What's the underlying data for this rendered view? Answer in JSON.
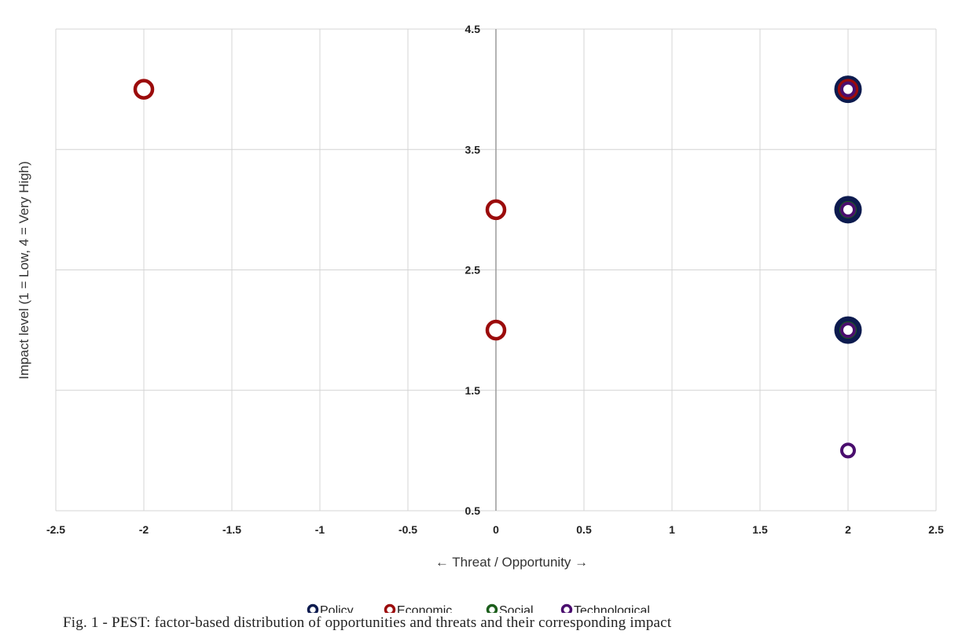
{
  "caption": "Fig. 1 - PEST: factor-based distribution of opportunities and threats and their corresponding impact",
  "chart_data": {
    "type": "scatter",
    "title": "",
    "xlabel": "← Threat / Opportunity →",
    "ylabel": "Impact level (1 = Low, 4 = Very High)",
    "xlim": [
      -2.5,
      2.5
    ],
    "ylim": [
      0.5,
      4.5
    ],
    "xticks": [
      -2.5,
      -2,
      -1.5,
      -1,
      -0.5,
      0,
      0.5,
      1,
      1.5,
      2,
      2.5
    ],
    "xtick_labels": [
      "-2.5",
      "-2",
      "-1.5",
      "-1",
      "-0.5",
      "0",
      "0.5",
      "1",
      "1.5",
      "2",
      "2.5"
    ],
    "yticks": [
      4.5,
      3.5,
      2.5,
      1.5,
      0.5
    ],
    "ytick_labels": [
      "4.5",
      "3.5",
      "2.5",
      "1.5",
      "0.5"
    ],
    "grid": true,
    "legend_position": "bottom",
    "series": [
      {
        "name": "Policy",
        "color": "#0d1b4f",
        "points": [
          [
            2,
            4
          ],
          [
            2,
            3
          ],
          [
            2,
            2
          ]
        ]
      },
      {
        "name": "Economic",
        "color": "#9b0b0b",
        "points": [
          [
            -2,
            4
          ],
          [
            0,
            3
          ],
          [
            0,
            2
          ],
          [
            2,
            4
          ]
        ]
      },
      {
        "name": "Social",
        "color": "#1c5e1c",
        "points": [
          [
            2,
            3
          ],
          [
            2,
            2
          ]
        ]
      },
      {
        "name": "Technological",
        "color": "#4a0e6e",
        "points": [
          [
            2,
            4
          ],
          [
            2,
            3
          ],
          [
            2,
            2
          ],
          [
            2,
            1
          ]
        ]
      }
    ]
  }
}
